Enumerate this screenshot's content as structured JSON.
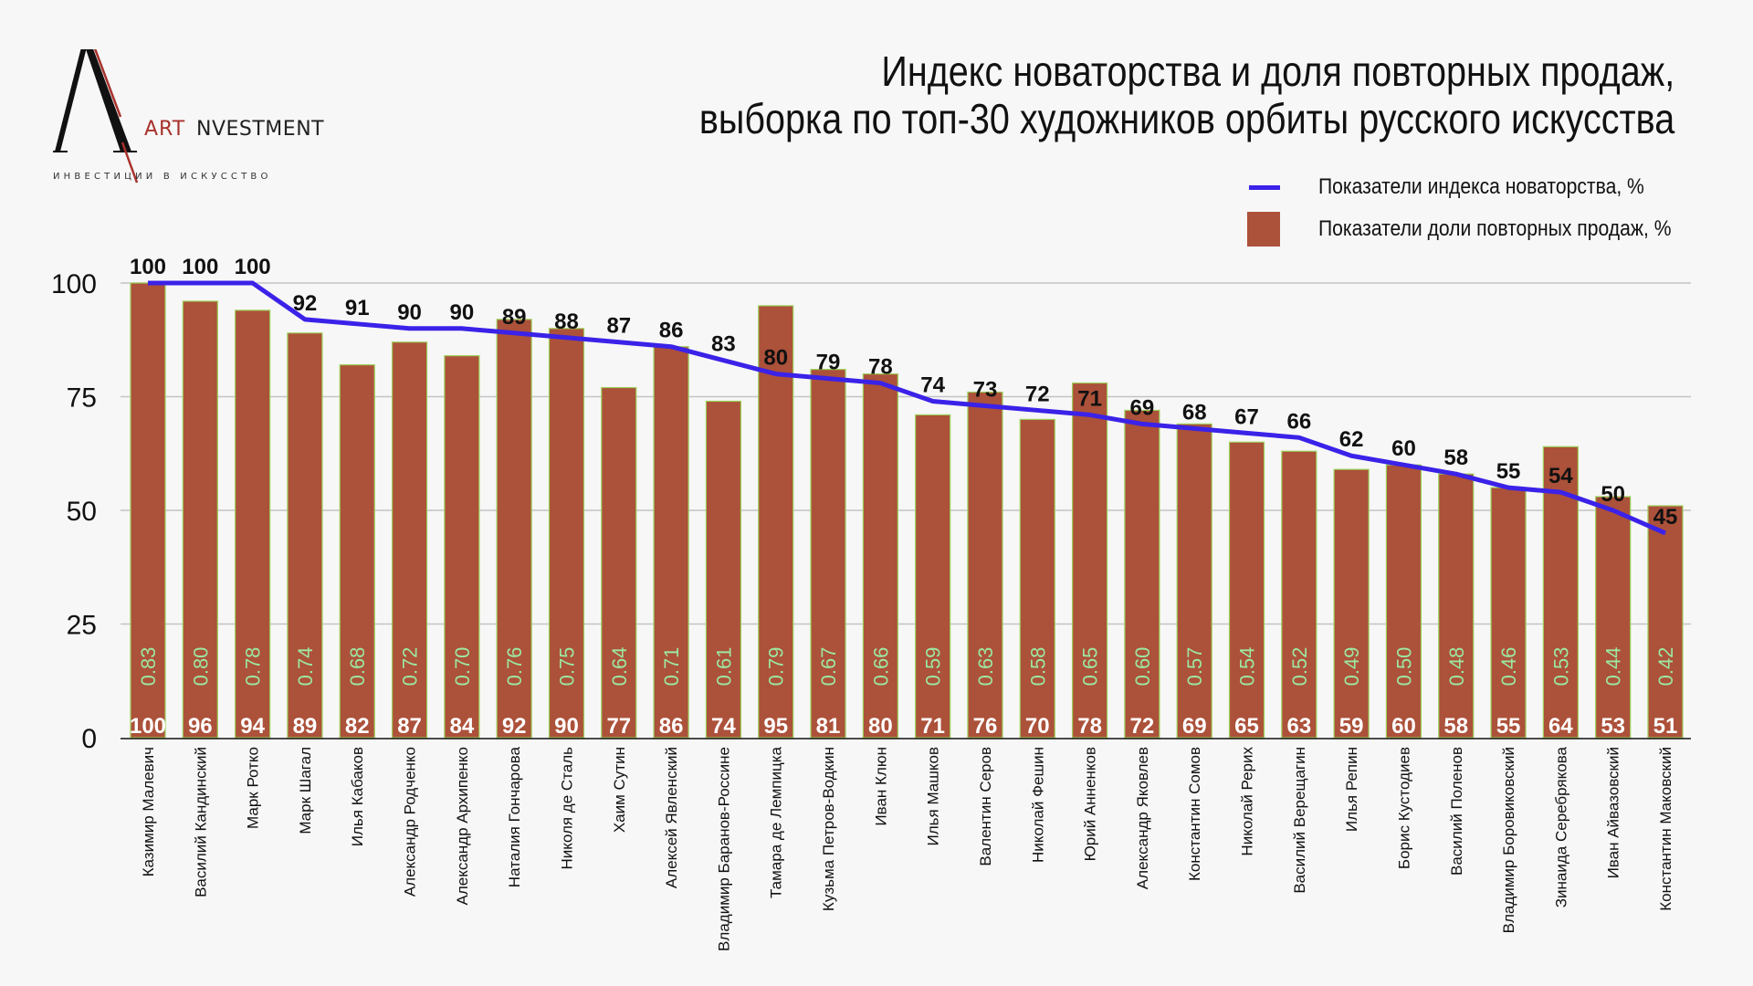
{
  "logo": {
    "art": "ART",
    "investment": "NVESTMENT",
    "tagline": "ИНВЕСТИЦИИ В ИСКУССТВО"
  },
  "colors": {
    "bar": "#ac513a",
    "bar_border": "#9ccf5a",
    "line": "#3b22e8",
    "ratio_label": "#9ce7a1",
    "background": "#f7f7f7",
    "logo_red": "#a8322c"
  },
  "chart_data": {
    "type": "bar",
    "title": "Индекс новаторства и доля повторных продаж,",
    "subtitle": "выборка по топ-30 художников орбиты русского искусства",
    "xlabel": "",
    "ylabel": "",
    "ylim": [
      0,
      100
    ],
    "yticks": [
      "0",
      "25",
      "50",
      "75",
      "100"
    ],
    "grid": true,
    "legend_position": "top-right",
    "categories": [
      "Казимир Малевич",
      "Василий Кандинский",
      "Марк Ротко",
      "Марк Шагал",
      "Илья Кабаков",
      "Александр Родченко",
      "Александр Архипенко",
      "Наталия Гончарова",
      "Николя де Сталь",
      "Хаим Сутин",
      "Алексей Явленский",
      "Владимир Баранов-Россине",
      "Тамара де Лемпицка",
      "Кузьма Петров-Водкин",
      "Иван Клюн",
      "Илья Машков",
      "Валентин Серов",
      "Николай Фешин",
      "Юрий Анненков",
      "Александр Яковлев",
      "Константин Сомов",
      "Николай Рерих",
      "Василий Верещагин",
      "Илья Репин",
      "Борис Кустодиев",
      "Василий Поленов",
      "Владимир Боровиковский",
      "Зинаида Серебрякова",
      "Иван Айвазовский",
      "Константин Маковский"
    ],
    "series": [
      {
        "name": "Показатели доли повторных продаж, %",
        "type": "bar",
        "values": [
          100,
          96,
          94,
          89,
          82,
          87,
          84,
          92,
          90,
          77,
          86,
          74,
          95,
          81,
          80,
          71,
          76,
          70,
          78,
          72,
          69,
          65,
          63,
          59,
          60,
          58,
          55,
          64,
          53,
          51
        ]
      },
      {
        "name": "Показатели индекса новаторства, %",
        "type": "line",
        "values": [
          100,
          100,
          100,
          92,
          91,
          90,
          90,
          89,
          88,
          87,
          86,
          83,
          80,
          79,
          78,
          74,
          73,
          72,
          71,
          69,
          68,
          67,
          66,
          62,
          60,
          58,
          55,
          54,
          50,
          45
        ]
      },
      {
        "name": "ratio",
        "type": "label",
        "values": [
          "0.83",
          "0.80",
          "0.78",
          "0.74",
          "0.68",
          "0.72",
          "0.70",
          "0.76",
          "0.75",
          "0.64",
          "0.71",
          "0.61",
          "0.79",
          "0.67",
          "0.66",
          "0.59",
          "0.63",
          "0.58",
          "0.65",
          "0.60",
          "0.57",
          "0.54",
          "0.52",
          "0.49",
          "0.50",
          "0.48",
          "0.46",
          "0.53",
          "0.44",
          "0.42"
        ]
      }
    ]
  },
  "legend": {
    "line_label": "Показатели индекса новаторства, %",
    "bar_label": "Показатели доли повторных продаж, %"
  }
}
